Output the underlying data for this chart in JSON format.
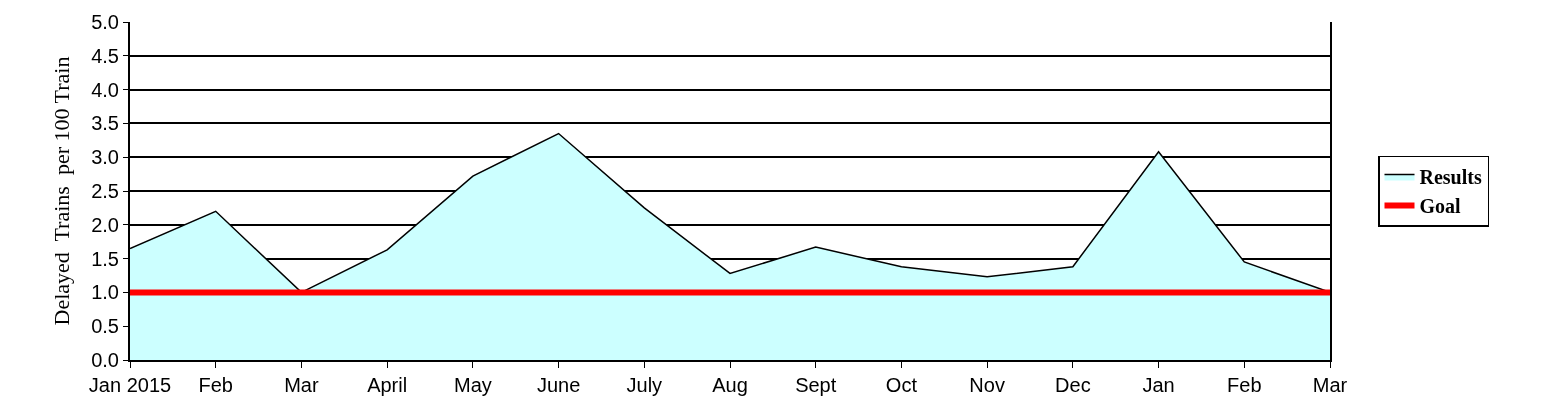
{
  "chart_data": {
    "type": "area",
    "ylabel": "Delayed  Trains  per 100 Train",
    "categories": [
      "Jan 2015",
      "Feb",
      "Mar",
      "April",
      "May",
      "June",
      "July",
      "Aug",
      "Sept",
      "Oct",
      "Nov",
      "Dec",
      "Jan",
      "Feb",
      "Mar"
    ],
    "series": [
      {
        "name": "Results",
        "color": "#ccffff",
        "values": [
          1.65,
          2.2,
          1.0,
          1.63,
          2.72,
          3.35,
          2.25,
          1.28,
          1.67,
          1.38,
          1.23,
          1.38,
          3.08,
          1.45,
          1.0
        ]
      },
      {
        "name": "Goal",
        "type": "line",
        "color": "#ff0000",
        "values": [
          1.0,
          1.0,
          1.0,
          1.0,
          1.0,
          1.0,
          1.0,
          1.0,
          1.0,
          1.0,
          1.0,
          1.0,
          1.0,
          1.0,
          1.0
        ]
      }
    ],
    "ylim": [
      0,
      5
    ],
    "yticks": [
      {
        "value": 0,
        "label": "0.0"
      },
      {
        "value": 0.5,
        "label": "0.5"
      },
      {
        "value": 1,
        "label": "1.0"
      },
      {
        "value": 1.5,
        "label": "1.5"
      },
      {
        "value": 2,
        "label": "2.0"
      },
      {
        "value": 2.5,
        "label": "2.5"
      },
      {
        "value": 3,
        "label": "3.0"
      },
      {
        "value": 3.5,
        "label": "3.5"
      },
      {
        "value": 4,
        "label": "4.0"
      },
      {
        "value": 4.5,
        "label": "4.5"
      },
      {
        "value": 5,
        "label": "5.0"
      }
    ],
    "grid": "y",
    "legend": "right",
    "marker": "none"
  }
}
